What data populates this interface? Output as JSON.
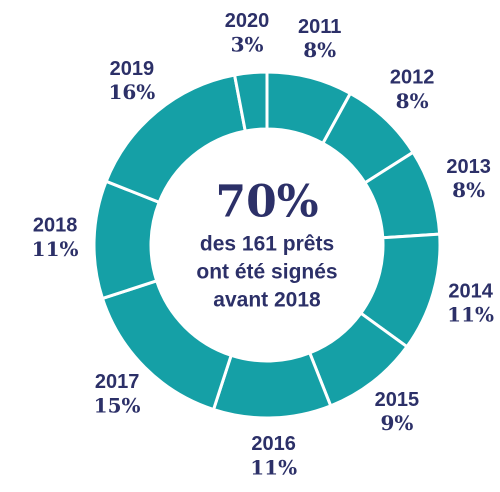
{
  "chart_data": {
    "type": "donut",
    "categories": [
      "2011",
      "2012",
      "2013",
      "2014",
      "2015",
      "2016",
      "2017",
      "2018",
      "2019",
      "2020"
    ],
    "values": [
      8,
      8,
      8,
      11,
      9,
      11,
      15,
      11,
      16,
      3
    ],
    "value_labels": [
      "8%",
      "8%",
      "8%",
      "11%",
      "9%",
      "11%",
      "15%",
      "11%",
      "16%",
      "3%"
    ],
    "color": "#15a0a6",
    "center_title": "70%",
    "center_text": [
      "des 161 prêts",
      "ont été signés",
      "avant 2018"
    ]
  }
}
